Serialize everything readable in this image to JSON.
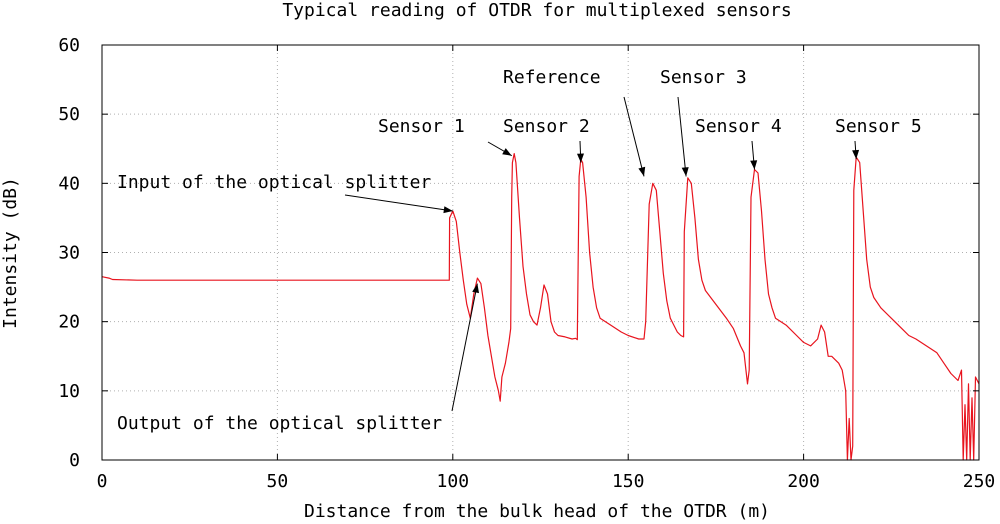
{
  "chart_data": {
    "type": "line",
    "title": "Typical reading of OTDR for multiplexed sensors",
    "xlabel": "Distance from the bulk head of the OTDR (m)",
    "ylabel": "Intensity (dB)",
    "xlim": [
      0,
      250
    ],
    "ylim": [
      0,
      60
    ],
    "x_ticks": [
      0,
      50,
      100,
      150,
      200,
      250
    ],
    "y_ticks": [
      0,
      10,
      20,
      30,
      40,
      50,
      60
    ],
    "grid": true,
    "line_color": "#e8141e",
    "series": [
      {
        "points": [
          [
            0,
            26.5
          ],
          [
            2,
            26.3
          ],
          [
            3,
            26.1
          ],
          [
            10,
            26.0
          ],
          [
            40,
            26.0
          ],
          [
            80,
            26.0
          ],
          [
            99,
            26.0
          ],
          [
            99.1,
            35
          ],
          [
            100,
            36
          ],
          [
            101,
            34.5
          ],
          [
            102,
            30
          ],
          [
            103,
            26
          ],
          [
            104,
            22.5
          ],
          [
            105,
            20.5
          ],
          [
            106,
            24
          ],
          [
            107,
            26.3
          ],
          [
            108,
            25.5
          ],
          [
            109,
            22
          ],
          [
            110,
            18
          ],
          [
            111,
            15
          ],
          [
            112,
            12
          ],
          [
            113,
            10
          ],
          [
            113.5,
            8.5
          ],
          [
            114,
            12
          ],
          [
            115,
            14
          ],
          [
            116,
            17
          ],
          [
            116.5,
            19
          ],
          [
            116.8,
            38
          ],
          [
            117,
            43
          ],
          [
            117.5,
            44.3
          ],
          [
            118,
            43
          ],
          [
            119,
            35
          ],
          [
            120,
            28
          ],
          [
            121,
            24
          ],
          [
            122,
            21
          ],
          [
            123,
            20
          ],
          [
            124,
            19.5
          ],
          [
            125,
            22
          ],
          [
            126,
            25.3
          ],
          [
            127,
            24
          ],
          [
            128,
            20
          ],
          [
            129,
            18.5
          ],
          [
            130,
            18
          ],
          [
            132,
            17.8
          ],
          [
            134,
            17.5
          ],
          [
            135,
            17.6
          ],
          [
            135.5,
            17.4
          ],
          [
            136,
            41
          ],
          [
            136.5,
            43.5
          ],
          [
            137,
            43
          ],
          [
            138,
            38
          ],
          [
            139,
            30
          ],
          [
            140,
            25
          ],
          [
            141,
            22
          ],
          [
            142,
            20.5
          ],
          [
            145,
            19.5
          ],
          [
            148,
            18.5
          ],
          [
            150,
            18
          ],
          [
            153,
            17.5
          ],
          [
            154.5,
            17.5
          ],
          [
            155,
            20
          ],
          [
            156,
            37
          ],
          [
            157,
            40
          ],
          [
            158,
            39
          ],
          [
            159,
            33
          ],
          [
            160,
            27
          ],
          [
            161,
            23
          ],
          [
            162,
            20.5
          ],
          [
            163,
            19.5
          ],
          [
            164,
            18.5
          ],
          [
            165,
            18
          ],
          [
            165.8,
            17.8
          ],
          [
            166,
            33
          ],
          [
            167,
            40.8
          ],
          [
            168,
            40
          ],
          [
            169,
            35
          ],
          [
            170,
            29
          ],
          [
            171,
            26
          ],
          [
            172,
            24.5
          ],
          [
            175,
            22.5
          ],
          [
            178,
            20.5
          ],
          [
            180,
            19
          ],
          [
            182,
            16.5
          ],
          [
            183,
            15.5
          ],
          [
            184,
            11
          ],
          [
            184.5,
            13
          ],
          [
            185,
            38
          ],
          [
            186,
            42
          ],
          [
            187,
            41.5
          ],
          [
            188,
            36
          ],
          [
            189,
            29
          ],
          [
            190,
            24
          ],
          [
            191,
            22
          ],
          [
            192,
            20.5
          ],
          [
            195,
            19.5
          ],
          [
            198,
            18
          ],
          [
            200,
            17
          ],
          [
            202,
            16.5
          ],
          [
            204,
            17.5
          ],
          [
            205,
            19.5
          ],
          [
            206,
            18.5
          ],
          [
            207,
            15
          ],
          [
            208,
            15
          ],
          [
            210,
            14
          ],
          [
            211,
            13
          ],
          [
            212,
            10
          ],
          [
            212.5,
            0
          ],
          [
            213,
            6
          ],
          [
            213.5,
            0
          ],
          [
            214,
            2
          ],
          [
            214.3,
            39
          ],
          [
            215,
            43.8
          ],
          [
            216,
            43
          ],
          [
            217,
            36
          ],
          [
            218,
            29
          ],
          [
            219,
            25
          ],
          [
            220,
            23.5
          ],
          [
            222,
            22
          ],
          [
            225,
            20.5
          ],
          [
            228,
            19
          ],
          [
            230,
            18
          ],
          [
            232,
            17.5
          ],
          [
            235,
            16.5
          ],
          [
            238,
            15.5
          ],
          [
            240,
            14
          ],
          [
            242,
            12.5
          ],
          [
            244,
            11.5
          ],
          [
            245,
            13
          ],
          [
            245.5,
            0
          ],
          [
            246,
            8
          ],
          [
            246.5,
            0
          ],
          [
            247,
            11
          ],
          [
            247.5,
            0
          ],
          [
            248,
            9
          ],
          [
            248.5,
            0
          ],
          [
            249,
            12
          ],
          [
            250,
            11
          ]
        ]
      }
    ],
    "annotations": [
      {
        "id": "input-splitter",
        "text": "Input of the optical splitter",
        "target": [
          100,
          36
        ]
      },
      {
        "id": "output-splitter",
        "text": "Output of the optical splitter",
        "target": [
          107,
          25.5
        ]
      },
      {
        "id": "sensor-1",
        "text": "Sensor 1",
        "target": [
          116.8,
          44
        ]
      },
      {
        "id": "sensor-2",
        "text": "Sensor 2",
        "target": [
          136.5,
          43
        ]
      },
      {
        "id": "reference",
        "text": "Reference",
        "target": [
          154.5,
          41
        ]
      },
      {
        "id": "sensor-3",
        "text": "Sensor 3",
        "target": [
          166.5,
          41
        ]
      },
      {
        "id": "sensor-4",
        "text": "Sensor 4",
        "target": [
          186,
          42
        ]
      },
      {
        "id": "sensor-5",
        "text": "Sensor 5",
        "target": [
          215,
          43.5
        ]
      }
    ]
  }
}
